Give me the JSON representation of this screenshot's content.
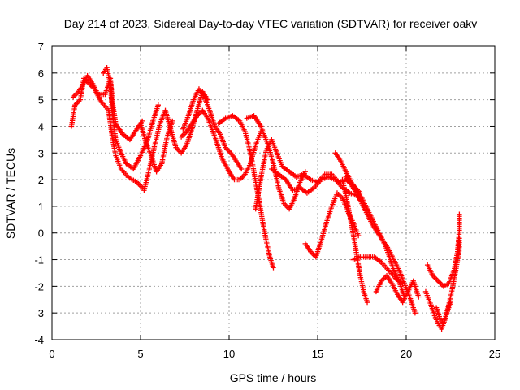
{
  "chart_data": {
    "type": "scatter",
    "title": "Day 214 of 2023, Sidereal Day-to-day VTEC variation (SDTVAR) for receiver oakv",
    "xlabel": "GPS time / hours",
    "ylabel": "SDTVAR / TECUs",
    "xlim": [
      0,
      25
    ],
    "ylim": [
      -4,
      7
    ],
    "xticks": [
      "0",
      "5",
      "10",
      "15",
      "20",
      "25"
    ],
    "yticks": [
      "-4",
      "-3",
      "-2",
      "-1",
      "0",
      "1",
      "2",
      "3",
      "4",
      "5",
      "6",
      "7"
    ],
    "grid": true,
    "marker": "plus",
    "series": [
      {
        "name": "SDTVAR",
        "color": "#ff0000",
        "tracks": [
          [
            [
              1.1,
              4.0
            ],
            [
              1.3,
              4.8
            ],
            [
              1.6,
              5.0
            ],
            [
              1.8,
              5.8
            ],
            [
              2.1,
              5.6
            ],
            [
              2.4,
              5.4
            ],
            [
              2.8,
              4.9
            ],
            [
              3.2,
              4.6
            ],
            [
              3.4,
              3.6
            ],
            [
              3.6,
              2.9
            ],
            [
              3.9,
              2.4
            ],
            [
              4.3,
              2.1
            ],
            [
              4.8,
              1.9
            ],
            [
              5.1,
              1.7
            ]
          ],
          [
            [
              1.2,
              5.1
            ],
            [
              1.5,
              5.3
            ],
            [
              1.7,
              5.5
            ],
            [
              2.0,
              5.9
            ],
            [
              2.3,
              5.6
            ],
            [
              2.6,
              5.2
            ],
            [
              3.0,
              5.2
            ],
            [
              3.3,
              5.8
            ],
            [
              3.4,
              5.0
            ],
            [
              3.6,
              4.1
            ],
            [
              4.0,
              3.7
            ],
            [
              4.4,
              3.5
            ],
            [
              4.8,
              3.9
            ],
            [
              5.1,
              4.2
            ]
          ],
          [
            [
              2.9,
              6.0
            ],
            [
              3.1,
              6.2
            ],
            [
              3.3,
              5.6
            ],
            [
              3.4,
              4.6
            ],
            [
              3.6,
              3.5
            ],
            [
              3.9,
              3.0
            ],
            [
              4.2,
              2.6
            ],
            [
              4.6,
              2.4
            ],
            [
              5.0,
              2.9
            ],
            [
              5.4,
              3.5
            ],
            [
              5.7,
              4.2
            ],
            [
              6.0,
              4.8
            ]
          ],
          [
            [
              5.0,
              4.1
            ],
            [
              5.3,
              3.4
            ],
            [
              5.6,
              2.9
            ],
            [
              5.9,
              2.3
            ],
            [
              6.2,
              2.6
            ],
            [
              6.5,
              3.6
            ],
            [
              6.8,
              4.2
            ]
          ],
          [
            [
              5.2,
              1.6
            ],
            [
              5.5,
              2.4
            ],
            [
              5.8,
              3.3
            ],
            [
              6.1,
              4.1
            ],
            [
              6.4,
              4.6
            ],
            [
              6.7,
              3.9
            ],
            [
              7.0,
              3.2
            ],
            [
              7.3,
              3.0
            ],
            [
              7.6,
              3.3
            ],
            [
              7.9,
              3.9
            ],
            [
              8.2,
              4.6
            ],
            [
              8.5,
              5.3
            ],
            [
              8.8,
              5.0
            ]
          ],
          [
            [
              7.4,
              3.9
            ],
            [
              7.7,
              4.4
            ],
            [
              8.0,
              5.0
            ],
            [
              8.3,
              5.4
            ],
            [
              8.6,
              5.1
            ],
            [
              8.9,
              4.6
            ],
            [
              9.2,
              4.0
            ],
            [
              9.5,
              3.7
            ],
            [
              9.8,
              3.2
            ],
            [
              10.1,
              3.0
            ],
            [
              10.4,
              2.7
            ],
            [
              10.7,
              2.4
            ]
          ],
          [
            [
              7.3,
              3.6
            ],
            [
              7.6,
              3.8
            ],
            [
              7.9,
              4.1
            ],
            [
              8.2,
              4.4
            ],
            [
              8.5,
              4.6
            ],
            [
              8.8,
              4.3
            ],
            [
              9.2,
              3.6
            ],
            [
              9.6,
              2.8
            ],
            [
              10.0,
              2.3
            ],
            [
              10.3,
              2.0
            ],
            [
              10.6,
              2.0
            ],
            [
              10.9,
              2.2
            ],
            [
              11.2,
              2.6
            ],
            [
              11.5,
              3.3
            ],
            [
              11.8,
              3.8
            ]
          ],
          [
            [
              9.4,
              4.1
            ],
            [
              9.8,
              4.3
            ],
            [
              10.2,
              4.4
            ],
            [
              10.6,
              4.2
            ],
            [
              10.9,
              3.8
            ],
            [
              11.1,
              3.3
            ],
            [
              11.3,
              2.7
            ],
            [
              11.5,
              1.9
            ],
            [
              11.7,
              1.2
            ],
            [
              11.9,
              0.4
            ],
            [
              12.1,
              -0.3
            ],
            [
              12.3,
              -0.9
            ],
            [
              12.5,
              -1.3
            ]
          ],
          [
            [
              11.0,
              4.3
            ],
            [
              11.4,
              4.4
            ],
            [
              11.8,
              4.0
            ],
            [
              12.2,
              3.3
            ],
            [
              12.5,
              2.6
            ],
            [
              12.8,
              1.7
            ],
            [
              13.1,
              1.1
            ],
            [
              13.4,
              0.9
            ],
            [
              13.7,
              1.3
            ],
            [
              14.0,
              1.9
            ],
            [
              14.3,
              2.3
            ]
          ],
          [
            [
              11.5,
              0.9
            ],
            [
              11.8,
              2.1
            ],
            [
              12.1,
              3.1
            ],
            [
              12.4,
              3.5
            ],
            [
              12.7,
              3.0
            ],
            [
              13.0,
              2.5
            ],
            [
              13.4,
              2.3
            ],
            [
              13.8,
              2.1
            ],
            [
              14.2,
              2.2
            ],
            [
              14.6,
              2.0
            ],
            [
              15.0,
              1.9
            ],
            [
              15.4,
              2.2
            ],
            [
              15.8,
              2.2
            ],
            [
              16.2,
              1.9
            ],
            [
              16.6,
              2.0
            ],
            [
              17.0,
              1.8
            ],
            [
              17.4,
              1.5
            ]
          ],
          [
            [
              12.4,
              2.4
            ],
            [
              12.8,
              2.2
            ],
            [
              13.2,
              2.0
            ],
            [
              13.6,
              1.6
            ],
            [
              14.0,
              1.7
            ],
            [
              14.4,
              1.5
            ],
            [
              14.8,
              1.7
            ],
            [
              15.2,
              2.0
            ],
            [
              15.6,
              2.1
            ],
            [
              16.0,
              2.0
            ],
            [
              16.4,
              1.7
            ],
            [
              16.8,
              1.5
            ],
            [
              17.2,
              1.4
            ],
            [
              17.6,
              1.1
            ]
          ],
          [
            [
              14.3,
              -0.4
            ],
            [
              14.6,
              -0.7
            ],
            [
              14.9,
              -0.9
            ],
            [
              15.2,
              -0.3
            ],
            [
              15.5,
              0.4
            ],
            [
              15.8,
              1.0
            ],
            [
              16.1,
              1.5
            ],
            [
              16.4,
              1.3
            ],
            [
              16.7,
              0.8
            ],
            [
              17.0,
              0.4
            ],
            [
              17.3,
              -0.1
            ]
          ],
          [
            [
              16.0,
              3.0
            ],
            [
              16.3,
              2.7
            ],
            [
              16.6,
              2.3
            ],
            [
              16.9,
              1.9
            ],
            [
              17.2,
              1.6
            ],
            [
              17.5,
              1.3
            ],
            [
              17.8,
              0.9
            ],
            [
              18.1,
              0.5
            ],
            [
              18.4,
              0.1
            ],
            [
              18.7,
              -0.3
            ],
            [
              19.0,
              -0.8
            ],
            [
              19.3,
              -1.4
            ],
            [
              19.6,
              -1.8
            ],
            [
              19.9,
              -2.4
            ]
          ],
          [
            [
              16.6,
              2.1
            ],
            [
              16.9,
              1.8
            ],
            [
              17.2,
              1.5
            ],
            [
              17.5,
              1.1
            ],
            [
              17.8,
              0.7
            ],
            [
              18.1,
              0.3
            ],
            [
              18.4,
              0.0
            ],
            [
              18.7,
              -0.3
            ],
            [
              19.0,
              -0.6
            ],
            [
              19.3,
              -1.0
            ],
            [
              19.6,
              -1.4
            ],
            [
              19.9,
              -1.9
            ],
            [
              20.2,
              -2.4
            ],
            [
              20.5,
              -3.0
            ]
          ],
          [
            [
              16.4,
              2.0
            ],
            [
              16.6,
              1.4
            ],
            [
              16.8,
              0.7
            ],
            [
              17.0,
              0.0
            ],
            [
              17.2,
              -0.8
            ],
            [
              17.4,
              -1.6
            ],
            [
              17.6,
              -2.2
            ],
            [
              17.8,
              -2.6
            ]
          ],
          [
            [
              17.0,
              -1.0
            ],
            [
              17.4,
              -0.9
            ],
            [
              17.8,
              -0.9
            ],
            [
              18.2,
              -0.9
            ],
            [
              18.6,
              -1.1
            ],
            [
              19.0,
              -1.4
            ],
            [
              19.4,
              -1.7
            ],
            [
              19.8,
              -1.9
            ]
          ],
          [
            [
              18.3,
              -2.2
            ],
            [
              18.6,
              -1.8
            ],
            [
              18.9,
              -1.6
            ],
            [
              19.2,
              -1.9
            ],
            [
              19.5,
              -2.3
            ],
            [
              19.8,
              -2.6
            ],
            [
              20.1,
              -2.2
            ],
            [
              20.4,
              -1.8
            ],
            [
              20.7,
              -2.4
            ]
          ],
          [
            [
              21.2,
              -1.2
            ],
            [
              21.5,
              -1.6
            ],
            [
              21.8,
              -1.8
            ],
            [
              22.1,
              -2.0
            ],
            [
              22.4,
              -1.9
            ],
            [
              22.7,
              -1.4
            ],
            [
              22.9,
              -0.7
            ],
            [
              23.0,
              0.1
            ],
            [
              23.0,
              0.7
            ]
          ],
          [
            [
              21.1,
              -2.2
            ],
            [
              21.4,
              -2.7
            ],
            [
              21.6,
              -3.1
            ],
            [
              21.8,
              -3.4
            ],
            [
              22.0,
              -3.6
            ],
            [
              22.2,
              -3.2
            ],
            [
              22.4,
              -2.7
            ],
            [
              22.6,
              -2.1
            ],
            [
              22.8,
              -1.4
            ],
            [
              23.0,
              -0.6
            ],
            [
              23.0,
              -0.2
            ]
          ],
          [
            [
              21.7,
              -2.8
            ],
            [
              21.9,
              -3.2
            ],
            [
              22.1,
              -3.4
            ],
            [
              22.3,
              -3.0
            ],
            [
              22.5,
              -2.6
            ]
          ]
        ]
      }
    ]
  }
}
